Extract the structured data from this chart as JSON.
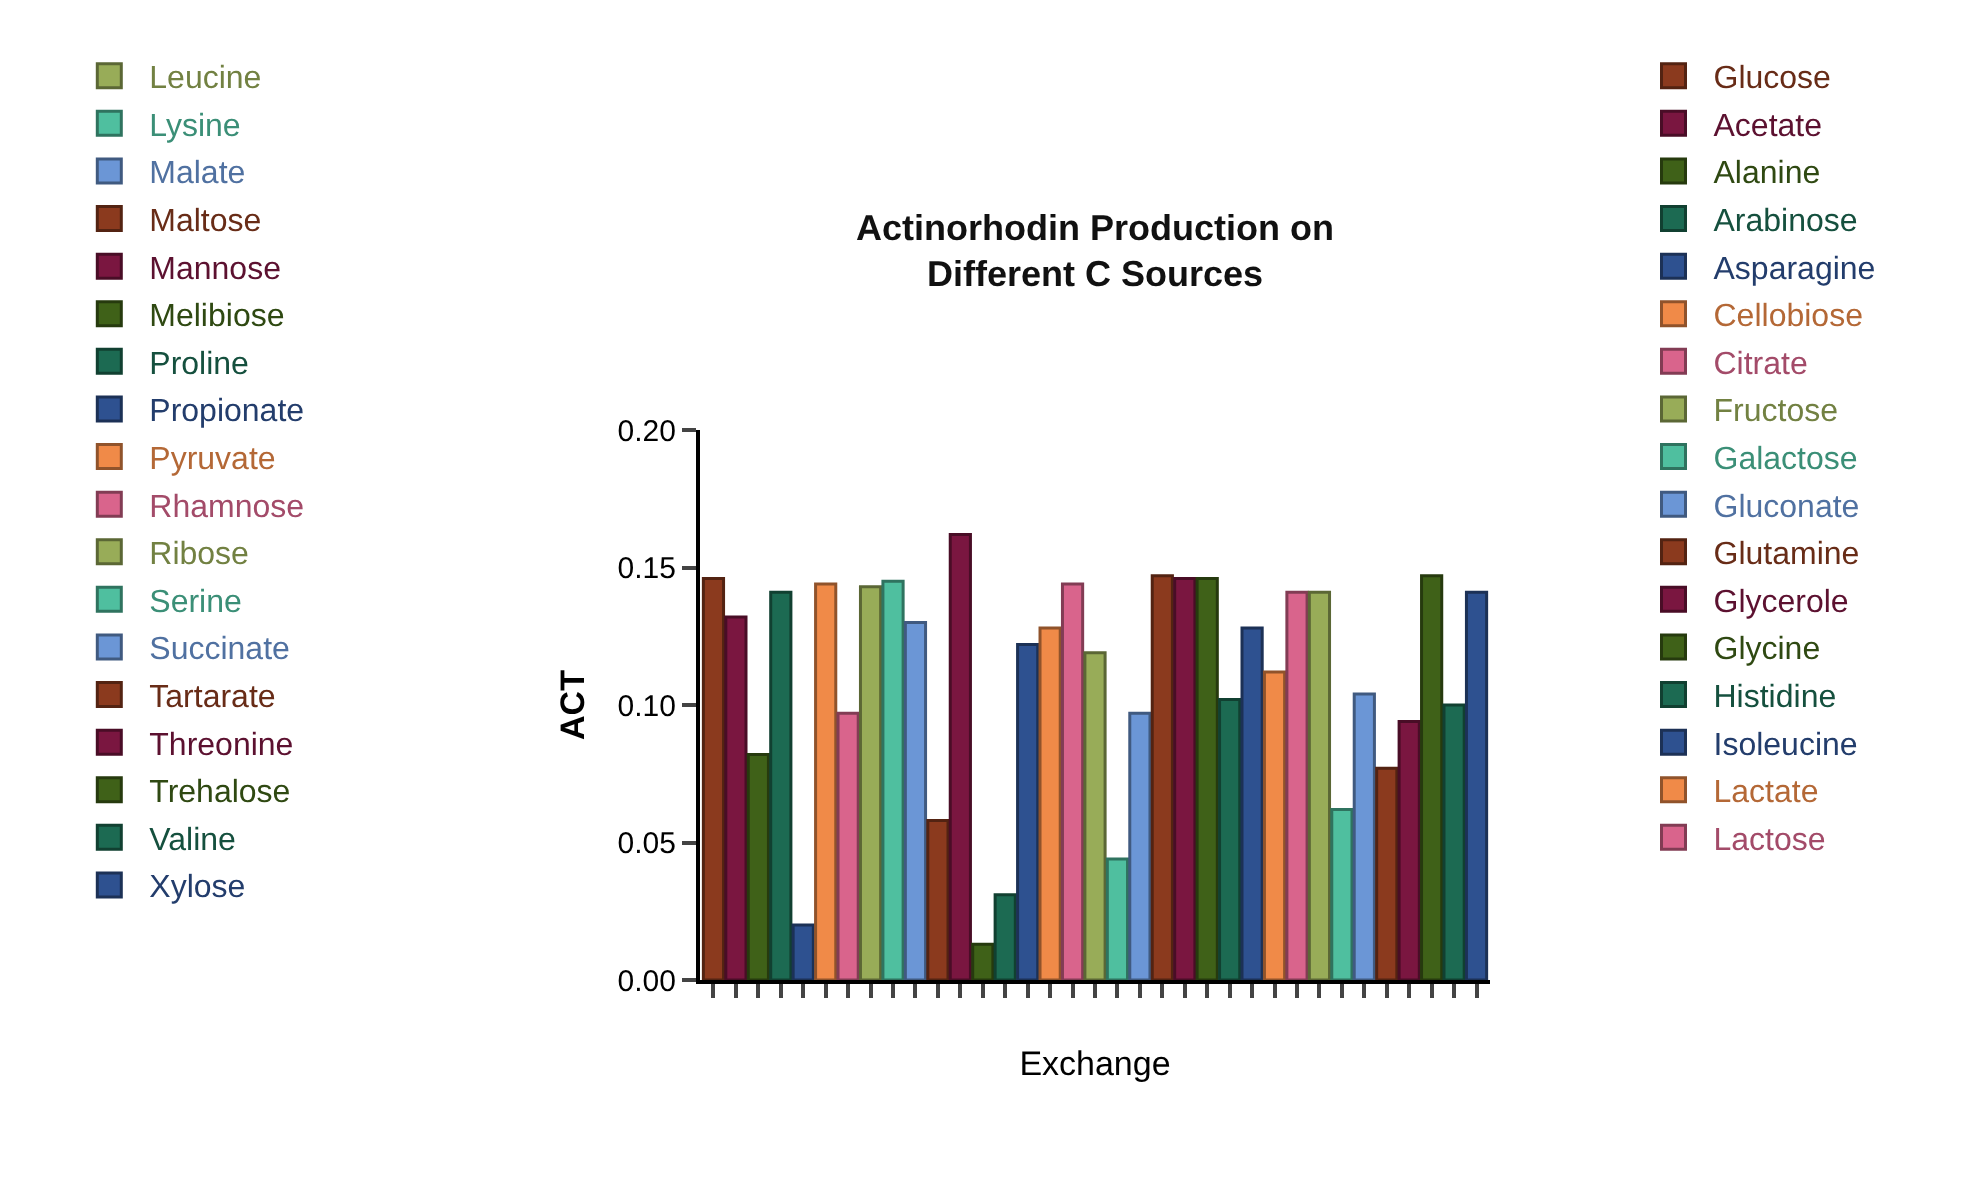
{
  "chart_data": {
    "type": "bar",
    "title": "Actinorhodin Production on\nDifferent C Sources",
    "xlabel": "Exchange",
    "ylabel": "ACT",
    "categories": [
      null,
      null,
      null,
      null,
      null,
      null,
      null,
      null,
      null,
      null,
      null,
      null,
      null,
      null,
      null,
      null,
      null,
      null,
      null,
      null,
      null,
      null,
      null,
      null,
      null,
      null,
      null,
      null,
      null,
      null,
      null,
      null,
      null,
      null,
      null
    ],
    "ylim": [
      0,
      0.2
    ],
    "yticks": [
      {
        "value": 0,
        "label": "0.00"
      },
      {
        "value": 0.05,
        "label": "0.05"
      },
      {
        "value": 0.1,
        "label": "0.10"
      },
      {
        "value": 0.15,
        "label": "0.15"
      },
      {
        "value": 0.2,
        "label": "0.20"
      }
    ],
    "grid": false,
    "legend": "top left",
    "tick_labels": "y",
    "series": [
      {
        "name": "Glucose",
        "color": "#8b3a1e",
        "values": [
          0.146,
          null,
          null,
          null,
          null,
          null,
          null,
          null,
          null,
          null,
          null,
          null,
          null,
          null,
          null,
          null,
          null,
          null,
          null,
          null,
          null,
          null,
          null,
          null,
          null,
          null,
          null,
          null,
          null,
          null,
          null,
          null,
          null,
          null,
          null
        ]
      },
      {
        "name": "Acetate",
        "color": "#7a1640",
        "values": [
          null,
          0.132,
          null,
          null,
          null,
          null,
          null,
          null,
          null,
          null,
          null,
          null,
          null,
          null,
          null,
          null,
          null,
          null,
          null,
          null,
          null,
          null,
          null,
          null,
          null,
          null,
          null,
          null,
          null,
          null,
          null,
          null,
          null,
          null,
          null
        ]
      },
      {
        "name": "Alanine",
        "color": "#3f6118",
        "values": [
          null,
          null,
          0.082,
          null,
          null,
          null,
          null,
          null,
          null,
          null,
          null,
          null,
          null,
          null,
          null,
          null,
          null,
          null,
          null,
          null,
          null,
          null,
          null,
          null,
          null,
          null,
          null,
          null,
          null,
          null,
          null,
          null,
          null,
          null,
          null
        ]
      },
      {
        "name": "Arabinose",
        "color": "#1c6a52",
        "values": [
          null,
          null,
          null,
          0.141,
          null,
          null,
          null,
          null,
          null,
          null,
          null,
          null,
          null,
          null,
          null,
          null,
          null,
          null,
          null,
          null,
          null,
          null,
          null,
          null,
          null,
          null,
          null,
          null,
          null,
          null,
          null,
          null,
          null,
          null,
          null
        ]
      },
      {
        "name": "Asparagine",
        "color": "#2e5190",
        "values": [
          null,
          null,
          null,
          null,
          0.02,
          null,
          null,
          null,
          null,
          null,
          null,
          null,
          null,
          null,
          null,
          null,
          null,
          null,
          null,
          null,
          null,
          null,
          null,
          null,
          null,
          null,
          null,
          null,
          null,
          null,
          null,
          null,
          null,
          null,
          null
        ]
      },
      {
        "name": "Cellobiose",
        "color": "#f08a48",
        "values": [
          null,
          null,
          null,
          null,
          null,
          0.144,
          null,
          null,
          null,
          null,
          null,
          null,
          null,
          null,
          null,
          null,
          null,
          null,
          null,
          null,
          null,
          null,
          null,
          null,
          null,
          null,
          null,
          null,
          null,
          null,
          null,
          null,
          null,
          null,
          null
        ]
      },
      {
        "name": "Citrate",
        "color": "#d9648c",
        "values": [
          null,
          null,
          null,
          null,
          null,
          null,
          0.097,
          null,
          null,
          null,
          null,
          null,
          null,
          null,
          null,
          null,
          null,
          null,
          null,
          null,
          null,
          null,
          null,
          null,
          null,
          null,
          null,
          null,
          null,
          null,
          null,
          null,
          null,
          null,
          null
        ]
      },
      {
        "name": "Fructose",
        "color": "#98ac58",
        "values": [
          null,
          null,
          null,
          null,
          null,
          null,
          null,
          0.143,
          null,
          null,
          null,
          null,
          null,
          null,
          null,
          null,
          null,
          null,
          null,
          null,
          null,
          null,
          null,
          null,
          null,
          null,
          null,
          null,
          null,
          null,
          null,
          null,
          null,
          null,
          null
        ]
      },
      {
        "name": "Galactose",
        "color": "#4fbf9f",
        "values": [
          null,
          null,
          null,
          null,
          null,
          null,
          null,
          null,
          0.145,
          null,
          null,
          null,
          null,
          null,
          null,
          null,
          null,
          null,
          null,
          null,
          null,
          null,
          null,
          null,
          null,
          null,
          null,
          null,
          null,
          null,
          null,
          null,
          null,
          null,
          null
        ]
      },
      {
        "name": "Gluconate",
        "color": "#6b96d6",
        "values": [
          null,
          null,
          null,
          null,
          null,
          null,
          null,
          null,
          null,
          0.13,
          null,
          null,
          null,
          null,
          null,
          null,
          null,
          null,
          null,
          null,
          null,
          null,
          null,
          null,
          null,
          null,
          null,
          null,
          null,
          null,
          null,
          null,
          null,
          null,
          null
        ]
      },
      {
        "name": "Glutamine",
        "color": "#8b3a1e",
        "values": [
          null,
          null,
          null,
          null,
          null,
          null,
          null,
          null,
          null,
          null,
          0.058,
          null,
          null,
          null,
          null,
          null,
          null,
          null,
          null,
          null,
          null,
          null,
          null,
          null,
          null,
          null,
          null,
          null,
          null,
          null,
          null,
          null,
          null,
          null,
          null
        ]
      },
      {
        "name": "Glycerole",
        "color": "#7a1640",
        "values": [
          null,
          null,
          null,
          null,
          null,
          null,
          null,
          null,
          null,
          null,
          null,
          0.162,
          null,
          null,
          null,
          null,
          null,
          null,
          null,
          null,
          null,
          null,
          null,
          null,
          null,
          null,
          null,
          null,
          null,
          null,
          null,
          null,
          null,
          null,
          null
        ]
      },
      {
        "name": "Glycine",
        "color": "#3f6118",
        "values": [
          null,
          null,
          null,
          null,
          null,
          null,
          null,
          null,
          null,
          null,
          null,
          null,
          0.013,
          null,
          null,
          null,
          null,
          null,
          null,
          null,
          null,
          null,
          null,
          null,
          null,
          null,
          null,
          null,
          null,
          null,
          null,
          null,
          null,
          null,
          null
        ]
      },
      {
        "name": "Histidine",
        "color": "#1c6a52",
        "values": [
          null,
          null,
          null,
          null,
          null,
          null,
          null,
          null,
          null,
          null,
          null,
          null,
          null,
          0.031,
          null,
          null,
          null,
          null,
          null,
          null,
          null,
          null,
          null,
          null,
          null,
          null,
          null,
          null,
          null,
          null,
          null,
          null,
          null,
          null,
          null
        ]
      },
      {
        "name": "Isoleucine",
        "color": "#2e5190",
        "values": [
          null,
          null,
          null,
          null,
          null,
          null,
          null,
          null,
          null,
          null,
          null,
          null,
          null,
          null,
          0.122,
          null,
          null,
          null,
          null,
          null,
          null,
          null,
          null,
          null,
          null,
          null,
          null,
          null,
          null,
          null,
          null,
          null,
          null,
          null,
          null
        ]
      },
      {
        "name": "Lactate",
        "color": "#f08a48",
        "values": [
          null,
          null,
          null,
          null,
          null,
          null,
          null,
          null,
          null,
          null,
          null,
          null,
          null,
          null,
          null,
          0.128,
          null,
          null,
          null,
          null,
          null,
          null,
          null,
          null,
          null,
          null,
          null,
          null,
          null,
          null,
          null,
          null,
          null,
          null,
          null
        ]
      },
      {
        "name": "Lactose",
        "color": "#d9648c",
        "values": [
          null,
          null,
          null,
          null,
          null,
          null,
          null,
          null,
          null,
          null,
          null,
          null,
          null,
          null,
          null,
          null,
          0.144,
          null,
          null,
          null,
          null,
          null,
          null,
          null,
          null,
          null,
          null,
          null,
          null,
          null,
          null,
          null,
          null,
          null,
          null
        ]
      },
      {
        "name": "Leucine",
        "color": "#98ac58",
        "values": [
          null,
          null,
          null,
          null,
          null,
          null,
          null,
          null,
          null,
          null,
          null,
          null,
          null,
          null,
          null,
          null,
          null,
          0.119,
          null,
          null,
          null,
          null,
          null,
          null,
          null,
          null,
          null,
          null,
          null,
          null,
          null,
          null,
          null,
          null,
          null
        ]
      },
      {
        "name": "Lysine",
        "color": "#4fbf9f",
        "values": [
          null,
          null,
          null,
          null,
          null,
          null,
          null,
          null,
          null,
          null,
          null,
          null,
          null,
          null,
          null,
          null,
          null,
          null,
          0.044,
          null,
          null,
          null,
          null,
          null,
          null,
          null,
          null,
          null,
          null,
          null,
          null,
          null,
          null,
          null,
          null
        ]
      },
      {
        "name": "Malate",
        "color": "#6b96d6",
        "values": [
          null,
          null,
          null,
          null,
          null,
          null,
          null,
          null,
          null,
          null,
          null,
          null,
          null,
          null,
          null,
          null,
          null,
          null,
          null,
          0.097,
          null,
          null,
          null,
          null,
          null,
          null,
          null,
          null,
          null,
          null,
          null,
          null,
          null,
          null,
          null
        ]
      },
      {
        "name": "Maltose",
        "color": "#8b3a1e",
        "values": [
          null,
          null,
          null,
          null,
          null,
          null,
          null,
          null,
          null,
          null,
          null,
          null,
          null,
          null,
          null,
          null,
          null,
          null,
          null,
          null,
          0.147,
          null,
          null,
          null,
          null,
          null,
          null,
          null,
          null,
          null,
          null,
          null,
          null,
          null,
          null
        ]
      },
      {
        "name": "Mannose",
        "color": "#7a1640",
        "values": [
          null,
          null,
          null,
          null,
          null,
          null,
          null,
          null,
          null,
          null,
          null,
          null,
          null,
          null,
          null,
          null,
          null,
          null,
          null,
          null,
          null,
          0.146,
          null,
          null,
          null,
          null,
          null,
          null,
          null,
          null,
          null,
          null,
          null,
          null,
          null
        ]
      },
      {
        "name": "Melibiose",
        "color": "#3f6118",
        "values": [
          null,
          null,
          null,
          null,
          null,
          null,
          null,
          null,
          null,
          null,
          null,
          null,
          null,
          null,
          null,
          null,
          null,
          null,
          null,
          null,
          null,
          null,
          0.146,
          null,
          null,
          null,
          null,
          null,
          null,
          null,
          null,
          null,
          null,
          null,
          null
        ]
      },
      {
        "name": "Proline",
        "color": "#1c6a52",
        "values": [
          null,
          null,
          null,
          null,
          null,
          null,
          null,
          null,
          null,
          null,
          null,
          null,
          null,
          null,
          null,
          null,
          null,
          null,
          null,
          null,
          null,
          null,
          null,
          0.102,
          null,
          null,
          null,
          null,
          null,
          null,
          null,
          null,
          null,
          null,
          null
        ]
      },
      {
        "name": "Propionate",
        "color": "#2e5190",
        "values": [
          null,
          null,
          null,
          null,
          null,
          null,
          null,
          null,
          null,
          null,
          null,
          null,
          null,
          null,
          null,
          null,
          null,
          null,
          null,
          null,
          null,
          null,
          null,
          null,
          0.128,
          null,
          null,
          null,
          null,
          null,
          null,
          null,
          null,
          null,
          null
        ]
      },
      {
        "name": "Pyruvate",
        "color": "#f08a48",
        "values": [
          null,
          null,
          null,
          null,
          null,
          null,
          null,
          null,
          null,
          null,
          null,
          null,
          null,
          null,
          null,
          null,
          null,
          null,
          null,
          null,
          null,
          null,
          null,
          null,
          null,
          0.112,
          null,
          null,
          null,
          null,
          null,
          null,
          null,
          null,
          null
        ]
      },
      {
        "name": "Rhamnose",
        "color": "#d9648c",
        "values": [
          null,
          null,
          null,
          null,
          null,
          null,
          null,
          null,
          null,
          null,
          null,
          null,
          null,
          null,
          null,
          null,
          null,
          null,
          null,
          null,
          null,
          null,
          null,
          null,
          null,
          null,
          0.141,
          null,
          null,
          null,
          null,
          null,
          null,
          null,
          null
        ]
      },
      {
        "name": "Ribose",
        "color": "#98ac58",
        "values": [
          null,
          null,
          null,
          null,
          null,
          null,
          null,
          null,
          null,
          null,
          null,
          null,
          null,
          null,
          null,
          null,
          null,
          null,
          null,
          null,
          null,
          null,
          null,
          null,
          null,
          null,
          null,
          0.141,
          null,
          null,
          null,
          null,
          null,
          null,
          null
        ]
      },
      {
        "name": "Serine",
        "color": "#4fbf9f",
        "values": [
          null,
          null,
          null,
          null,
          null,
          null,
          null,
          null,
          null,
          null,
          null,
          null,
          null,
          null,
          null,
          null,
          null,
          null,
          null,
          null,
          null,
          null,
          null,
          null,
          null,
          null,
          null,
          null,
          0.062,
          null,
          null,
          null,
          null,
          null,
          null
        ]
      },
      {
        "name": "Succinate",
        "color": "#6b96d6",
        "values": [
          null,
          null,
          null,
          null,
          null,
          null,
          null,
          null,
          null,
          null,
          null,
          null,
          null,
          null,
          null,
          null,
          null,
          null,
          null,
          null,
          null,
          null,
          null,
          null,
          null,
          null,
          null,
          null,
          null,
          0.104,
          null,
          null,
          null,
          null,
          null
        ]
      },
      {
        "name": "Tartarate",
        "color": "#8b3a1e",
        "values": [
          null,
          null,
          null,
          null,
          null,
          null,
          null,
          null,
          null,
          null,
          null,
          null,
          null,
          null,
          null,
          null,
          null,
          null,
          null,
          null,
          null,
          null,
          null,
          null,
          null,
          null,
          null,
          null,
          null,
          null,
          0.077,
          null,
          null,
          null,
          null
        ]
      },
      {
        "name": "Threonine",
        "color": "#7a1640",
        "values": [
          null,
          null,
          null,
          null,
          null,
          null,
          null,
          null,
          null,
          null,
          null,
          null,
          null,
          null,
          null,
          null,
          null,
          null,
          null,
          null,
          null,
          null,
          null,
          null,
          null,
          null,
          null,
          null,
          null,
          null,
          null,
          0.094,
          null,
          null,
          null
        ]
      },
      {
        "name": "Trehalose",
        "color": "#3f6118",
        "values": [
          null,
          null,
          null,
          null,
          null,
          null,
          null,
          null,
          null,
          null,
          null,
          null,
          null,
          null,
          null,
          null,
          null,
          null,
          null,
          null,
          null,
          null,
          null,
          null,
          null,
          null,
          null,
          null,
          null,
          null,
          null,
          null,
          0.147,
          null,
          null
        ]
      },
      {
        "name": "Valine",
        "color": "#1c6a52",
        "values": [
          null,
          null,
          null,
          null,
          null,
          null,
          null,
          null,
          null,
          null,
          null,
          null,
          null,
          null,
          null,
          null,
          null,
          null,
          null,
          null,
          null,
          null,
          null,
          null,
          null,
          null,
          null,
          null,
          null,
          null,
          null,
          null,
          null,
          0.1,
          null
        ]
      },
      {
        "name": "Xylose",
        "color": "#2e5190",
        "values": [
          null,
          null,
          null,
          null,
          null,
          null,
          null,
          null,
          null,
          null,
          null,
          null,
          null,
          null,
          null,
          null,
          null,
          null,
          null,
          null,
          null,
          null,
          null,
          null,
          null,
          null,
          null,
          null,
          null,
          null,
          null,
          null,
          null,
          null,
          0.141
        ]
      }
    ]
  }
}
